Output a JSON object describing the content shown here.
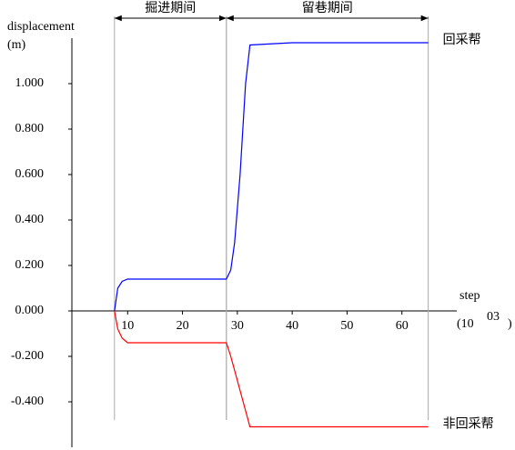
{
  "chart_data": {
    "type": "line",
    "ylabel": "displacement",
    "ylabel_unit": "(m)",
    "xlabel": "step",
    "xlabel_unit": {
      "base": "(10",
      "exponent": "03",
      "close": ")"
    },
    "xlim": [
      0,
      70
    ],
    "ylim": [
      -0.6,
      1.2
    ],
    "xticks": [
      10,
      20,
      30,
      40,
      50,
      60
    ],
    "yticks": [
      {
        "value": -0.4,
        "label": "-0.400"
      },
      {
        "value": -0.2,
        "label": "-0.200"
      },
      {
        "value": 0,
        "label": "0.000"
      },
      {
        "value": 0.2,
        "label": "0.200"
      },
      {
        "value": 0.4,
        "label": "0.400"
      },
      {
        "value": 0.6,
        "label": "0.600"
      },
      {
        "value": 0.8,
        "label": "0.800"
      },
      {
        "value": 1.0,
        "label": "1.000"
      }
    ],
    "periods": [
      {
        "label": "掘进期间",
        "start": 7.6,
        "end": 28
      },
      {
        "label": "留巷期间",
        "start": 28,
        "end": 64.8
      }
    ],
    "series": [
      {
        "name": "回采帮",
        "color": "#0000ff",
        "x": [
          7.6,
          8.2,
          9,
          10,
          28,
          28.8,
          29.5,
          30.5,
          31.5,
          32.3,
          40,
          64.8
        ],
        "values": [
          0,
          0.1,
          0.13,
          0.14,
          0.14,
          0.18,
          0.3,
          0.6,
          1.0,
          1.17,
          1.18,
          1.18
        ]
      },
      {
        "name": "非回采帮",
        "color": "#ff0000",
        "x": [
          7.6,
          8.2,
          9,
          10,
          28,
          28.8,
          32.3,
          64.8
        ],
        "values": [
          0,
          -0.08,
          -0.12,
          -0.14,
          -0.14,
          -0.2,
          -0.51,
          -0.51
        ]
      }
    ]
  }
}
